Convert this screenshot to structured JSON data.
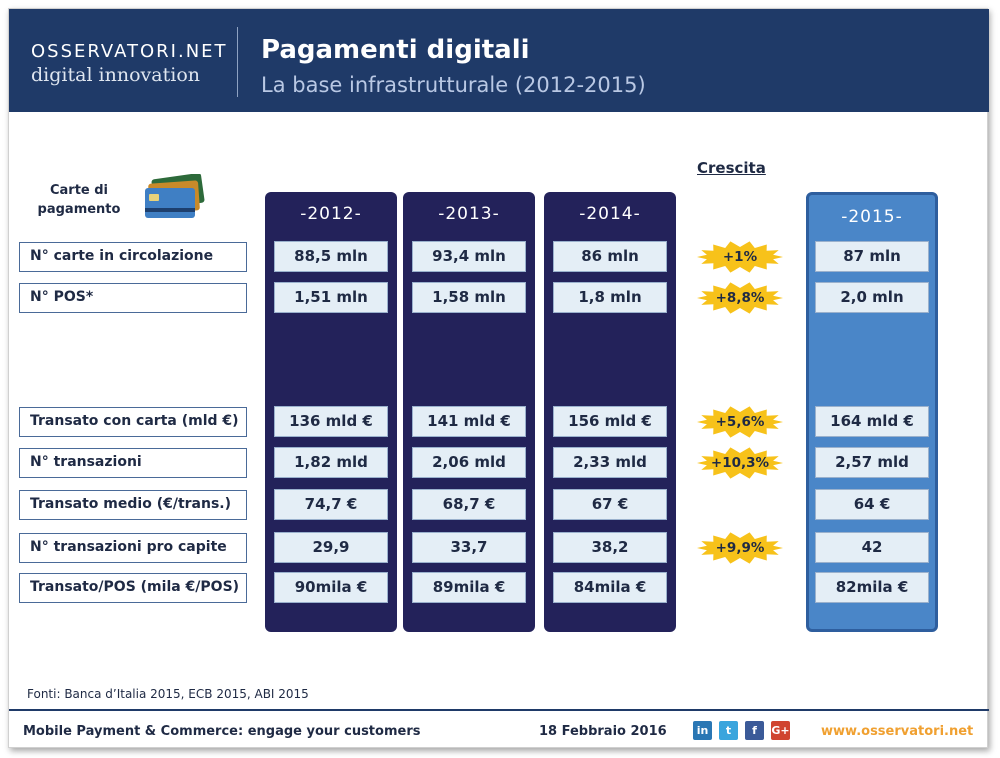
{
  "header": {
    "logo_line1": "OSSERVATORI.NET",
    "logo_line2": "digital innovation",
    "title": "Pagamenti digitali",
    "subtitle": "La base infrastrutturale (2012-2015)"
  },
  "cards_label": "Carte di pagamento",
  "crescita_label": "Crescita",
  "years": [
    "-2012-",
    "-2013-",
    "-2014-",
    "-2015-"
  ],
  "rows": [
    {
      "label": "N° carte in circolazione",
      "values": [
        "88,5 mln",
        "93,4 mln",
        "86 mln",
        "87 mln"
      ],
      "growth": "+1%"
    },
    {
      "label": "N° POS*",
      "values": [
        "1,51 mln",
        "1,58 mln",
        "1,8 mln",
        "2,0 mln"
      ],
      "growth": "+8,8%"
    },
    {
      "label": "Transato con carta (mld €)",
      "values": [
        "136 mld €",
        "141 mld €",
        "156 mld €",
        "164 mld €"
      ],
      "growth": "+5,6%"
    },
    {
      "label": "N° transazioni",
      "values": [
        "1,82 mld",
        "2,06 mld",
        "2,33 mld",
        "2,57 mld"
      ],
      "growth": "+10,3%"
    },
    {
      "label": "Transato medio (€/trans.)",
      "values": [
        "74,7 €",
        "68,7 €",
        "67 €",
        "64 €"
      ],
      "growth": ""
    },
    {
      "label": "N° transazioni pro capite",
      "values": [
        "29,9",
        "33,7",
        "38,2",
        "42"
      ],
      "growth": "+9,9%"
    },
    {
      "label": "Transato/POS (mila €/POS)",
      "values": [
        "90mila €",
        "89mila €",
        "84mila €",
        "82mila €"
      ],
      "growth": ""
    }
  ],
  "sources": "Fonti: Banca d’Italia 2015, ECB 2015, ABI 2015",
  "footer": {
    "tagline": "Mobile Payment & Commerce: engage your customers",
    "date": "18 Febbraio 2016",
    "social": [
      {
        "name": "linkedin-icon",
        "glyph": "in",
        "color": "#2a77b4"
      },
      {
        "name": "twitter-icon",
        "glyph": "t",
        "color": "#3aa5dd"
      },
      {
        "name": "facebook-icon",
        "glyph": "f",
        "color": "#3b5a98"
      },
      {
        "name": "googleplus-icon",
        "glyph": "G+",
        "color": "#d0442f"
      }
    ],
    "url": "www.osservatori.net"
  },
  "colors": {
    "header_bg": "#1f3a68",
    "column_bg": "#23225a",
    "column_2015_bg": "#4a86c8",
    "cell_bg": "#e4eef6",
    "burst_fill": "#f7c21a",
    "url_color": "#f0a030"
  }
}
